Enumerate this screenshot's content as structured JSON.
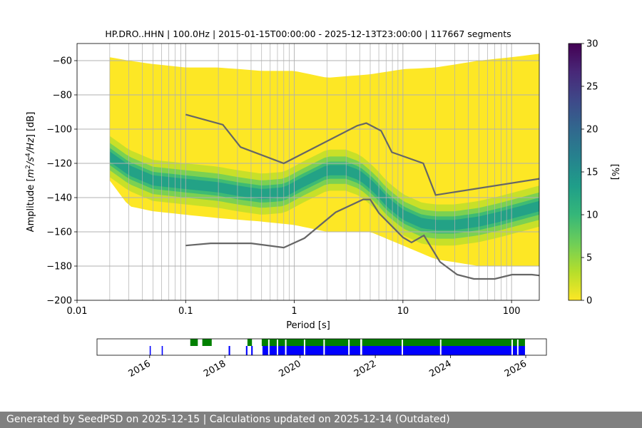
{
  "footer": {
    "text": "Generated by SeedPSD on 2025-12-15 | Calculations updated on 2025-12-14 (Outdated)"
  },
  "colors": {
    "histogram": [
      "#fde725",
      "#b5de2b",
      "#6ece58",
      "#35b779",
      "#1f9e89"
    ],
    "noise_model": "#666666",
    "grid": "#b0b0b0",
    "coverage_upper": "#008000",
    "coverage_lower": "#0000ff",
    "colormap_viridis": [
      "#440154",
      "#482878",
      "#3e4989",
      "#31688e",
      "#26828e",
      "#1f9e89",
      "#35b779",
      "#6ece58",
      "#b5de2b",
      "#fde725"
    ]
  },
  "chart_data": [
    {
      "type": "heatmap",
      "title": "HP.DRO..HHN | 100.0Hz | 2015-01-15T00:00:00 - 2025-12-13T23:00:00 | 117667 segments",
      "xlabel": "Period [s]",
      "ylabel": "Amplitude [$m^2/s^4/Hz$] [dB]",
      "ylabel_parts": {
        "prefix": "Amplitude [",
        "m": "m",
        "sup2": "2",
        "slash_s": "/s",
        "sup4": "4",
        "hz": "/Hz",
        "suffix": "] [dB]"
      },
      "x_scale": "log",
      "xlim": [
        0.01,
        180
      ],
      "ylim": [
        -200,
        -50
      ],
      "x_ticks": [
        {
          "value": 0.01,
          "label": "0.01"
        },
        {
          "value": 0.1,
          "label": "0.1"
        },
        {
          "value": 1,
          "label": "1"
        },
        {
          "value": 10,
          "label": "10"
        },
        {
          "value": 100,
          "label": "100"
        }
      ],
      "y_ticks": [
        {
          "value": -60,
          "label": "−60"
        },
        {
          "value": -80,
          "label": "−80"
        },
        {
          "value": -100,
          "label": "−100"
        },
        {
          "value": -120,
          "label": "−120"
        },
        {
          "value": -140,
          "label": "−140"
        },
        {
          "value": -160,
          "label": "−160"
        },
        {
          "value": -180,
          "label": "−180"
        },
        {
          "value": -200,
          "label": "−200"
        }
      ],
      "grid": true,
      "colorbar": {
        "label": "[%]",
        "range": [
          0,
          30
        ],
        "ticks": [
          {
            "value": 0,
            "label": "0"
          },
          {
            "value": 5,
            "label": "5"
          },
          {
            "value": 10,
            "label": "10"
          },
          {
            "value": 15,
            "label": "15"
          },
          {
            "value": 20,
            "label": "20"
          },
          {
            "value": 25,
            "label": "25"
          },
          {
            "value": 30,
            "label": "30"
          }
        ]
      },
      "psd_mode": {
        "periods": [
          0.02,
          0.03,
          0.05,
          0.1,
          0.2,
          0.3,
          0.5,
          0.8,
          1.2,
          2,
          3,
          4,
          5,
          6,
          7,
          10,
          15,
          20,
          30,
          50,
          80,
          120,
          180
        ],
        "db": [
          -116,
          -124,
          -130,
          -132,
          -134,
          -136,
          -138,
          -137,
          -131,
          -124,
          -124,
          -127,
          -132,
          -137,
          -142,
          -150,
          -155,
          -156,
          -156,
          -154,
          -151,
          -148,
          -145
        ]
      },
      "psd_envelope": {
        "periods": [
          0.02,
          0.03,
          0.05,
          0.1,
          0.2,
          0.5,
          1,
          2,
          5,
          10,
          20,
          50,
          100,
          180
        ],
        "upper_db": [
          -58,
          -60,
          -62,
          -64,
          -64,
          -66,
          -66,
          -70,
          -68,
          -65,
          -64,
          -60,
          -58,
          -56
        ],
        "lower_db": [
          -130,
          -145,
          -148,
          -150,
          -152,
          -154,
          -156,
          -160,
          -160,
          -168,
          -176,
          -180,
          -180,
          -180
        ]
      },
      "noise_models": {
        "high": {
          "periods": [
            0.1,
            0.22,
            0.32,
            0.8,
            3.8,
            4.6,
            6.3,
            7.9,
            15.4,
            20,
            180
          ],
          "db": [
            -91.5,
            -97.4,
            -110.5,
            -120,
            -98,
            -96.5,
            -101,
            -113.5,
            -120,
            -138.5,
            -129
          ]
        },
        "low": {
          "periods": [
            0.1,
            0.17,
            0.4,
            0.8,
            1.24,
            2.4,
            4.3,
            5,
            6,
            10,
            12,
            15.6,
            21.9,
            31.6,
            45,
            70,
            101,
            154,
            180
          ],
          "db": [
            -168,
            -166.7,
            -166.7,
            -169.2,
            -163.7,
            -148.6,
            -141.1,
            -141.1,
            -149,
            -163.2,
            -166.2,
            -162.1,
            -177.5,
            -185,
            -187.5,
            -187.5,
            -185,
            -185,
            -185.5
          ]
        }
      }
    },
    {
      "type": "table",
      "title": "",
      "x_ticks": [
        {
          "value": 2016,
          "label": "2016"
        },
        {
          "value": 2018,
          "label": "2018"
        },
        {
          "value": 2020,
          "label": "2020"
        },
        {
          "value": 2022,
          "label": "2022"
        },
        {
          "value": 2024,
          "label": "2024"
        },
        {
          "value": 2026,
          "label": "2026"
        }
      ],
      "xlim": [
        2014.6,
        2026.55
      ],
      "coverage_upper_years": [
        [
          2017.08,
          2017.28
        ],
        [
          2017.4,
          2017.65
        ],
        [
          2018.6,
          2018.72
        ],
        [
          2018.98,
          2021.6
        ],
        [
          2021.65,
          2025.98
        ]
      ],
      "coverage_lower_years": [
        [
          2016.0,
          2016.03
        ],
        [
          2016.32,
          2016.35
        ],
        [
          2018.1,
          2018.14
        ],
        [
          2018.56,
          2018.6
        ],
        [
          2018.7,
          2018.74
        ],
        [
          2019.0,
          2021.6
        ],
        [
          2021.65,
          2025.98
        ]
      ],
      "coverage_gaps_years": [
        2019.15,
        2019.38,
        2019.6,
        2020.1,
        2020.62,
        2021.28,
        2022.7,
        2023.72,
        2025.62,
        2025.77
      ]
    }
  ]
}
